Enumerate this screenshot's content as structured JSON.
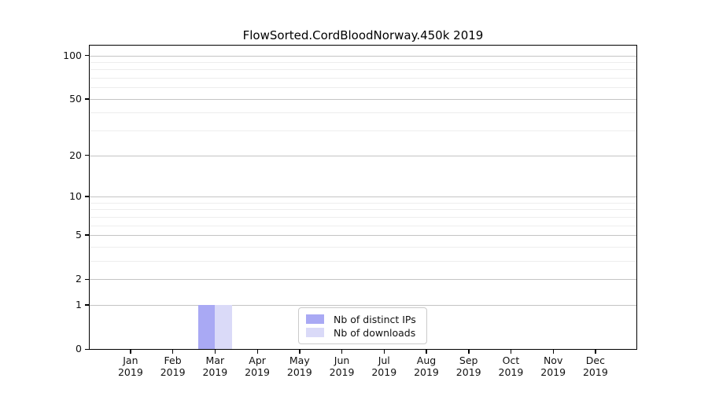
{
  "chart_data": {
    "type": "bar",
    "title": "FlowSorted.CordBloodNorway.450k 2019",
    "categories": [
      "Jan 2019",
      "Feb 2019",
      "Mar 2019",
      "Apr 2019",
      "May 2019",
      "Jun 2019",
      "Jul 2019",
      "Aug 2019",
      "Sep 2019",
      "Oct 2019",
      "Nov 2019",
      "Dec 2019"
    ],
    "series": [
      {
        "name": "Nb of distinct IPs",
        "color": "#a9a9f4",
        "values": [
          0,
          0,
          1,
          0,
          0,
          0,
          0,
          0,
          0,
          0,
          0,
          0
        ]
      },
      {
        "name": "Nb of downloads",
        "color": "#dadaf8",
        "values": [
          0,
          0,
          1,
          0,
          0,
          0,
          0,
          0,
          0,
          0,
          0,
          0
        ]
      }
    ],
    "xlabel": "",
    "ylabel": "",
    "y_scale": "log1p",
    "ylim": [
      0,
      118
    ],
    "y_ticks": [
      0,
      1,
      2,
      5,
      10,
      20,
      50,
      100
    ],
    "y_minor_gridlines": [
      3,
      4,
      6,
      7,
      8,
      9,
      30,
      40,
      60,
      70,
      80,
      90
    ],
    "grid": true,
    "legend_position": "inside-bottom-center"
  }
}
